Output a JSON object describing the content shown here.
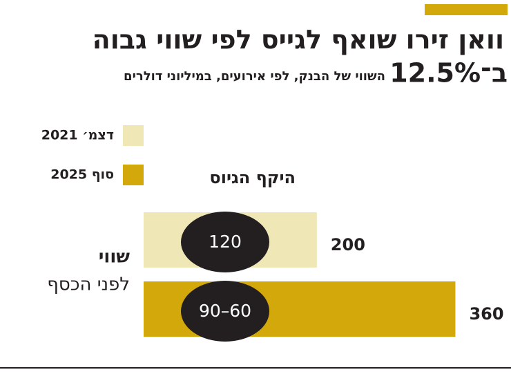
{
  "chart_data": {
    "type": "bar",
    "title": [
      "וואן זירו שואף לגייס לפי שווי גבוה",
      "ב־12.5%"
    ],
    "subtitle": "השווי של הבנק, לפי אירועים, במיליוני דולרים",
    "category_label": [
      "שווי",
      "לפני הכסף"
    ],
    "series": [
      {
        "name": "דצמ׳ 2021",
        "color": "#efe8b6",
        "values": [
          200
        ]
      },
      {
        "name": "סוף 2025",
        "color": "#d3a80a",
        "values": [
          360
        ]
      }
    ],
    "funding": {
      "label": "היקף הגיוס",
      "color": "#231f20",
      "labels": [
        "120",
        "90–60"
      ]
    }
  }
}
